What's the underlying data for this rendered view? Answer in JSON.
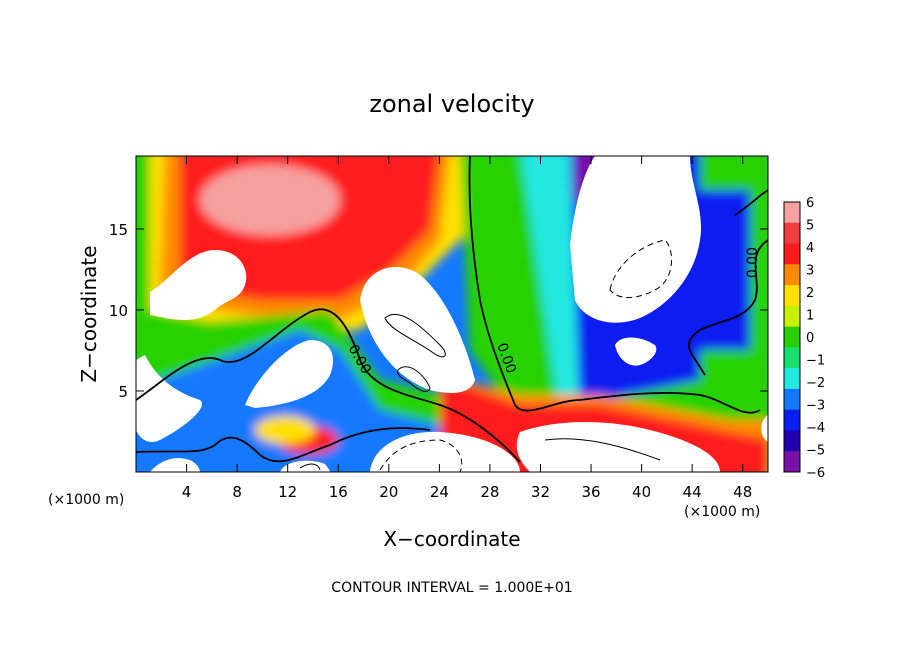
{
  "chart_data": {
    "type": "heatmap",
    "title": "zonal velocity",
    "xlabel": "X−coordinate",
    "ylabel": "Z−coordinate",
    "x_unit_left": "(×1000 m)",
    "x_unit_right": "(×1000 m)",
    "footer": "CONTOUR INTERVAL = 1.000E+01",
    "xlim": [
      0,
      50
    ],
    "ylim": [
      0,
      19.5
    ],
    "x_ticks": [
      "4",
      "8",
      "12",
      "16",
      "20",
      "24",
      "28",
      "32",
      "36",
      "40",
      "44",
      "48"
    ],
    "x_tick_values": [
      4,
      8,
      12,
      16,
      20,
      24,
      28,
      32,
      36,
      40,
      44,
      48
    ],
    "y_ticks": [
      "5",
      "10",
      "15"
    ],
    "y_tick_values": [
      5,
      10,
      15
    ],
    "contour_labels": [
      "0.00",
      "0.00",
      "0.00"
    ],
    "colorbar": {
      "ticks": [
        "6",
        "5",
        "4",
        "3",
        "2",
        "1",
        "0",
        "−1",
        "−2",
        "−3",
        "−4",
        "−5",
        "−6"
      ],
      "values": [
        6,
        5,
        4,
        3,
        2,
        1,
        0,
        -1,
        -2,
        -3,
        -4,
        -5,
        -6
      ],
      "min": -6,
      "max": 6,
      "colors": [
        "#f7a0a0",
        "#f03c3c",
        "#ff1a1a",
        "#ff8a00",
        "#ffe100",
        "#c8f000",
        "#28d200",
        "#18e070",
        "#22e8e0",
        "#1478ff",
        "#0a1ef0",
        "#2000b0",
        "#7a10a8"
      ]
    },
    "values_note": "clipped values above 6 shown as white",
    "grid": false
  }
}
